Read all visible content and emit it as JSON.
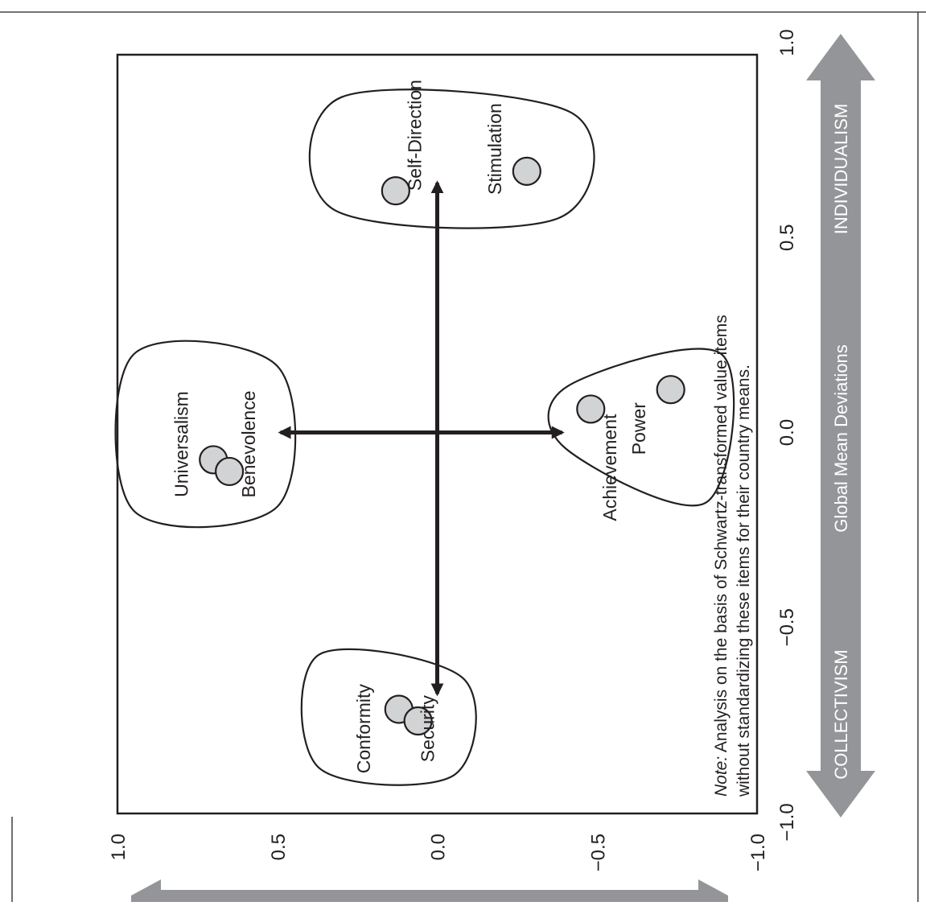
{
  "chart_data": {
    "type": "scatter",
    "xlabel": "Global Mean Deviations",
    "x_pole_low": "COLLECTIVISM",
    "x_pole_high": "INDIVIDUALISM",
    "xlim": [
      -1.0,
      1.0
    ],
    "ylim": [
      -1.0,
      1.0
    ],
    "x_ticks": [
      "−1.0",
      "−0.5",
      "0.0",
      "0.5",
      "1.0"
    ],
    "y_ticks": [
      "1.0",
      "0.5",
      "0.0",
      "−0.5",
      "−1.0"
    ],
    "points": [
      {
        "label": "Universalism",
        "x": -0.07,
        "y": 0.7
      },
      {
        "label": "Benevolence",
        "x": -0.1,
        "y": 0.65
      },
      {
        "label": "Self-Direction",
        "x": 0.62,
        "y": 0.13
      },
      {
        "label": "Stimulation",
        "x": 0.67,
        "y": -0.28
      },
      {
        "label": "Conformity",
        "x": -0.71,
        "y": 0.12
      },
      {
        "label": "Security",
        "x": -0.74,
        "y": 0.06
      },
      {
        "label": "Achievement",
        "x": 0.06,
        "y": -0.48
      },
      {
        "label": "Power",
        "x": 0.11,
        "y": -0.73
      }
    ],
    "groups": [
      [
        "Universalism",
        "Benevolence"
      ],
      [
        "Self-Direction",
        "Stimulation"
      ],
      [
        "Conformity",
        "Security"
      ],
      [
        "Achievement",
        "Power"
      ]
    ],
    "cross_arrows": {
      "x": [
        -0.67,
        0.64
      ],
      "y": [
        0.49,
        -0.39
      ]
    },
    "grid": false,
    "legend": "none",
    "colors": {
      "marker_fill": "#d1d3d4",
      "marker_stroke": "#231f20",
      "band": "#939598",
      "axis": "#231f20"
    }
  },
  "note": {
    "prefix": "Note:",
    "line1_rest": " Analysis on the basis of Schwartz-transformed value items",
    "line2": "without standardizing these items for their country means."
  }
}
